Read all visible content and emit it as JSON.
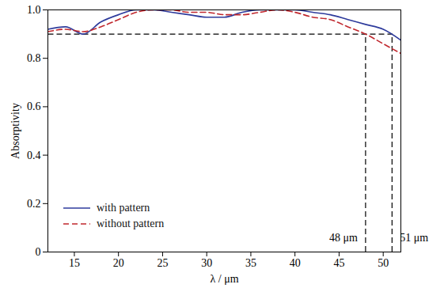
{
  "chart_data": {
    "type": "line",
    "x_label": "λ / μm",
    "y_label": "Absorptivity",
    "x": [
      12,
      14,
      16,
      18,
      20,
      22,
      24,
      26,
      28,
      30,
      32,
      34,
      36,
      38,
      40,
      42,
      44,
      46,
      48,
      50,
      52
    ],
    "series": [
      {
        "name": "with pattern",
        "color": "#2e3b9c",
        "line_style": "solid",
        "values": [
          0.92,
          0.93,
          0.9,
          0.95,
          0.98,
          1.0,
          1.0,
          0.99,
          0.98,
          0.97,
          0.97,
          0.99,
          1.0,
          1.0,
          1.0,
          0.99,
          0.98,
          0.96,
          0.94,
          0.92,
          0.875
        ]
      },
      {
        "name": "without pattern",
        "color": "#c0272d",
        "line_style": "dashed",
        "values": [
          0.91,
          0.92,
          0.91,
          0.93,
          0.96,
          0.99,
          1.0,
          1.0,
          0.99,
          0.99,
          0.98,
          0.98,
          0.99,
          1.0,
          0.99,
          0.97,
          0.96,
          0.93,
          0.9,
          0.86,
          0.82
        ]
      }
    ],
    "threshold": 0.9,
    "markers": [
      {
        "x": 48,
        "label": "48 μm"
      },
      {
        "x": 51,
        "label": "51 μm"
      }
    ],
    "xlim": [
      12,
      52
    ],
    "xticks": [
      15,
      20,
      25,
      30,
      35,
      40,
      45,
      50
    ],
    "ylim": [
      0,
      1
    ],
    "yticks": [
      0,
      0.2,
      0.4,
      0.6,
      0.8,
      {
        "value": 1,
        "label": "1.0"
      }
    ],
    "grid": false,
    "legend": "bottom-left"
  }
}
